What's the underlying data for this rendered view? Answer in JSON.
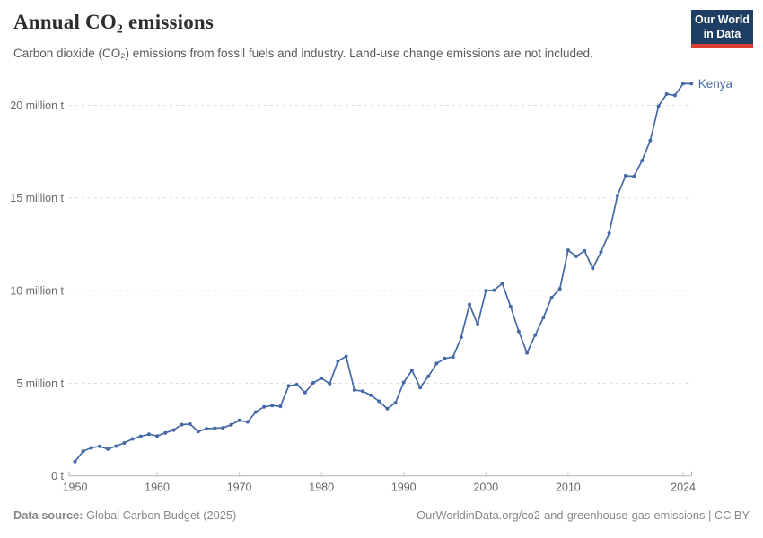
{
  "header": {
    "title": "Annual CO₂ emissions",
    "subtitle": "Carbon dioxide (CO₂) emissions from fossil fuels and industry. Land-use change emissions are not included.",
    "logo": {
      "line1": "Our World",
      "line2": "in Data"
    }
  },
  "chart_data": {
    "type": "line",
    "title": "Annual CO₂ emissions",
    "unit": "million tonnes of CO₂",
    "entity": "Kenya",
    "series_color": "#4569a5",
    "grid": "horizontal dashed",
    "legend": "end-of-line entity label",
    "xlim": [
      1950,
      2025
    ],
    "ylim": [
      0,
      21.5
    ],
    "xticks": [
      1950,
      1960,
      1970,
      1980,
      1990,
      2000,
      2010,
      2024
    ],
    "yticks": {
      "values": [
        0,
        5,
        10,
        15,
        20
      ],
      "labels": [
        "0 t",
        "5 million t",
        "10 million t",
        "15 million t",
        "20 million t"
      ]
    },
    "x": [
      1950,
      1951,
      1952,
      1953,
      1954,
      1955,
      1956,
      1957,
      1958,
      1959,
      1960,
      1961,
      1962,
      1963,
      1964,
      1965,
      1966,
      1967,
      1968,
      1969,
      1970,
      1971,
      1972,
      1973,
      1974,
      1975,
      1976,
      1977,
      1978,
      1979,
      1980,
      1981,
      1982,
      1983,
      1984,
      1985,
      1986,
      1987,
      1988,
      1989,
      1990,
      1991,
      1992,
      1993,
      1994,
      1995,
      1996,
      1997,
      1998,
      1999,
      2000,
      2001,
      2002,
      2003,
      2004,
      2005,
      2006,
      2007,
      2008,
      2009,
      2010,
      2011,
      2012,
      2013,
      2014,
      2015,
      2016,
      2017,
      2018,
      2019,
      2020,
      2021,
      2022,
      2023,
      2024,
      2025
    ],
    "values": [
      0.78,
      1.34,
      1.52,
      1.6,
      1.45,
      1.61,
      1.78,
      2.0,
      2.14,
      2.25,
      2.16,
      2.33,
      2.48,
      2.77,
      2.8,
      2.4,
      2.55,
      2.58,
      2.6,
      2.76,
      3.0,
      2.92,
      3.45,
      3.73,
      3.8,
      3.76,
      4.86,
      4.93,
      4.5,
      5.03,
      5.27,
      4.98,
      6.2,
      6.45,
      4.64,
      4.58,
      4.36,
      4.03,
      3.63,
      3.95,
      5.05,
      5.7,
      4.77,
      5.37,
      6.07,
      6.34,
      6.42,
      7.48,
      9.26,
      8.17,
      10.0,
      10.03,
      10.39,
      9.14,
      7.8,
      6.64,
      7.6,
      8.55,
      9.62,
      10.1,
      12.18,
      11.85,
      12.15,
      11.2,
      12.09,
      13.1,
      15.13,
      16.21,
      16.17,
      17.02,
      18.1,
      19.96,
      20.61,
      20.54,
      21.17,
      21.17
    ]
  },
  "footer": {
    "source_label": "Data source:",
    "source": "Global Carbon Budget (2025)",
    "link": "OurWorldinData.org/co2-and-greenhouse-gas-emissions",
    "license": "| CC BY"
  }
}
